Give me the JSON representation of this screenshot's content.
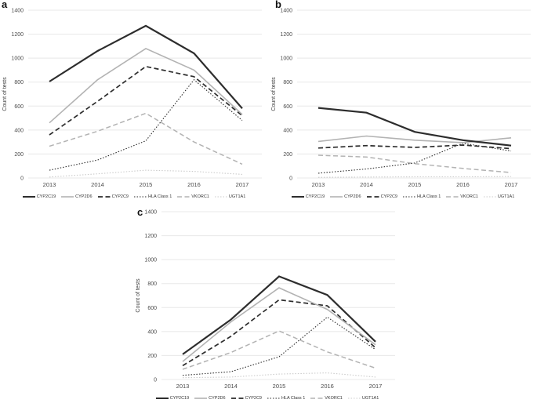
{
  "figure": {
    "background": "#ffffff",
    "ylabel": "Count of tests"
  },
  "styles": {
    "gridline_color": "#e8e8e8",
    "tick_label_color": "#4a4a4a",
    "axis_title_color": "#3d3d3d",
    "panel_letter_color": "#111111",
    "series": [
      {
        "name": "CYP2C19",
        "color": "#2d2d2d",
        "width": 2.2,
        "dash": ""
      },
      {
        "name": "CYP2D6",
        "color": "#b3b3b3",
        "width": 1.6,
        "dash": ""
      },
      {
        "name": "CYP2C9",
        "color": "#2d2d2d",
        "width": 1.7,
        "dash": "6 3.5"
      },
      {
        "name": "HLA Class 1",
        "color": "#2d2d2d",
        "width": 1.1,
        "dash": "1.5 2"
      },
      {
        "name": "VKORC1",
        "color": "#b3b3b3",
        "width": 1.5,
        "dash": "6 3.5"
      },
      {
        "name": "UGT1A1",
        "color": "#cbcbcb",
        "width": 1.1,
        "dash": "1.5 2"
      }
    ]
  },
  "chart_data": [
    {
      "panel_label": "a",
      "type": "line",
      "title": "",
      "xlabel": "",
      "ylabel": "Count of tests",
      "categories": [
        "2013",
        "2014",
        "2015",
        "2016",
        "2017"
      ],
      "y_ticks": [
        0,
        200,
        400,
        600,
        800,
        1000,
        1200,
        1400
      ],
      "ylim": [
        0,
        1400
      ],
      "grid": true,
      "legend_position": "bottom",
      "series": [
        {
          "name": "CYP2C19",
          "values": [
            805,
            1060,
            1270,
            1040,
            580
          ]
        },
        {
          "name": "CYP2D6",
          "values": [
            460,
            820,
            1080,
            900,
            530
          ]
        },
        {
          "name": "CYP2C9",
          "values": [
            360,
            640,
            930,
            845,
            520
          ]
        },
        {
          "name": "HLA Class 1",
          "values": [
            65,
            150,
            310,
            820,
            480
          ]
        },
        {
          "name": "VKORC1",
          "values": [
            265,
            390,
            540,
            300,
            115
          ]
        },
        {
          "name": "UGT1A1",
          "values": [
            8,
            35,
            65,
            55,
            30
          ]
        }
      ]
    },
    {
      "panel_label": "b",
      "type": "line",
      "title": "",
      "xlabel": "",
      "ylabel": "Count of tests",
      "categories": [
        "2013",
        "2014",
        "2015",
        "2016",
        "2017"
      ],
      "y_ticks": [
        0,
        200,
        400,
        600,
        800,
        1000,
        1200,
        1400
      ],
      "ylim": [
        0,
        1400
      ],
      "grid": true,
      "legend_position": "bottom",
      "series": [
        {
          "name": "CYP2C19",
          "values": [
            585,
            545,
            385,
            315,
            270
          ]
        },
        {
          "name": "CYP2D6",
          "values": [
            305,
            350,
            315,
            295,
            335
          ]
        },
        {
          "name": "CYP2C9",
          "values": [
            250,
            270,
            255,
            275,
            245
          ]
        },
        {
          "name": "HLA Class 1",
          "values": [
            40,
            75,
            125,
            290,
            225
          ]
        },
        {
          "name": "VKORC1",
          "values": [
            190,
            175,
            120,
            80,
            45
          ]
        },
        {
          "name": "UGT1A1",
          "values": [
            5,
            8,
            10,
            10,
            12
          ]
        }
      ]
    },
    {
      "panel_label": "c",
      "type": "line",
      "title": "",
      "xlabel": "",
      "ylabel": "Count of tests",
      "categories": [
        "2013",
        "2014",
        "2015",
        "2016",
        "2017"
      ],
      "y_ticks": [
        0,
        200,
        400,
        600,
        800,
        1000,
        1200,
        1400
      ],
      "ylim": [
        0,
        1400
      ],
      "grid": true,
      "legend_position": "bottom",
      "series": [
        {
          "name": "CYP2C19",
          "values": [
            210,
            500,
            860,
            705,
            315
          ]
        },
        {
          "name": "CYP2D6",
          "values": [
            150,
            480,
            765,
            585,
            290
          ]
        },
        {
          "name": "CYP2C9",
          "values": [
            115,
            360,
            665,
            615,
            265
          ]
        },
        {
          "name": "HLA Class 1",
          "values": [
            35,
            65,
            190,
            520,
            250
          ]
        },
        {
          "name": "VKORC1",
          "values": [
            85,
            225,
            405,
            230,
            95
          ]
        },
        {
          "name": "UGT1A1",
          "values": [
            15,
            20,
            45,
            55,
            20
          ]
        }
      ]
    }
  ]
}
